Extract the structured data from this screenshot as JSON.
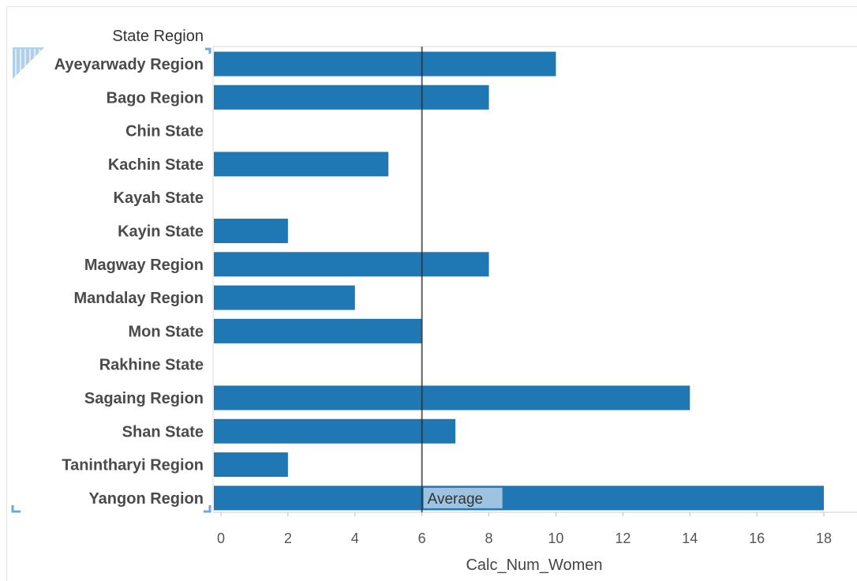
{
  "chart_data": {
    "type": "bar",
    "orientation": "horizontal",
    "row_header": "State Region",
    "xlabel": "Calc_Num_Women",
    "categories": [
      "Ayeyarwady Region",
      "Bago Region",
      "Chin State",
      "Kachin State",
      "Kayah State",
      "Kayin State",
      "Magway Region",
      "Mandalay Region",
      "Mon State",
      "Rakhine State",
      "Sagaing Region",
      "Shan State",
      "Tanintharyi Region",
      "Yangon Region"
    ],
    "values": [
      10,
      8,
      null,
      5,
      null,
      2,
      8,
      4,
      6,
      null,
      14,
      7,
      2,
      18
    ],
    "xlim": [
      0,
      18
    ],
    "xticks": [
      0,
      2,
      4,
      6,
      8,
      10,
      12,
      14,
      16,
      18
    ],
    "reference_line": {
      "label": "Average",
      "value": 6
    },
    "grid": false,
    "colors": {
      "bar": "#1f77b4",
      "reference_line": "#2b2b2b",
      "reference_label_bg": "#9dc3e0",
      "selection_marks": "#6fa8d6"
    }
  }
}
